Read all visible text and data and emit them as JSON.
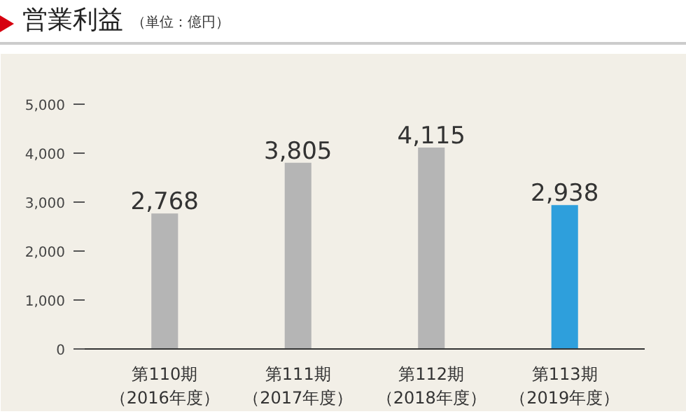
{
  "chart_data": {
    "type": "bar",
    "title": "営業利益",
    "subtitle": "（単位：億円）",
    "categories": [
      "第110期（2016年度）",
      "第111期（2017年度）",
      "第112期（2018年度）",
      "第113期（2019年度）"
    ],
    "values": [
      2768,
      3805,
      4115,
      2938
    ],
    "colors": [
      "#b5b5b5",
      "#b5b5b5",
      "#b5b5b5",
      "#2e9fdc"
    ],
    "value_labels": [
      "2,768",
      "3,805",
      "4,115",
      "2,938"
    ],
    "ylim": [
      0,
      5000
    ],
    "yticks": [
      {
        "value": 0,
        "label": "0"
      },
      {
        "value": 1000,
        "label": "1,000"
      },
      {
        "value": 2000,
        "label": "2,000"
      },
      {
        "value": 3000,
        "label": "3,000"
      },
      {
        "value": 4000,
        "label": "4,000"
      },
      {
        "value": 5000,
        "label": "5,000"
      }
    ],
    "grid": false
  }
}
